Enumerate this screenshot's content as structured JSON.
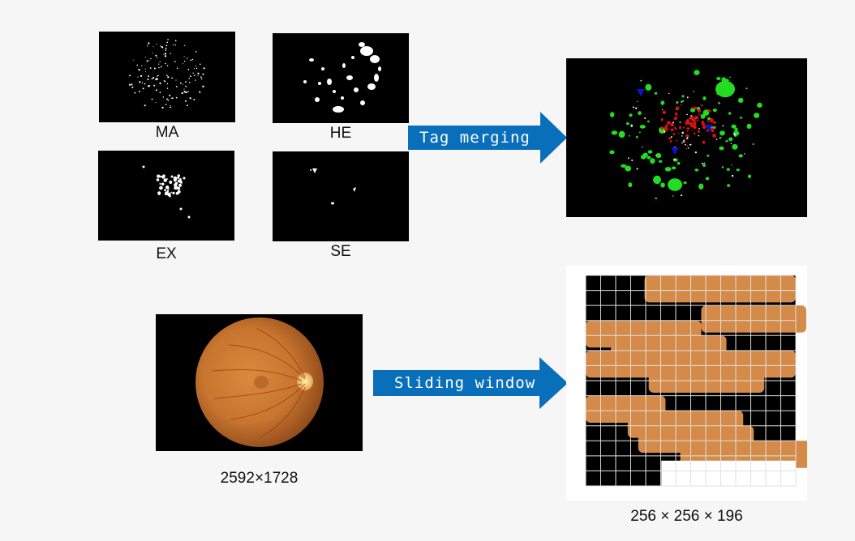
{
  "lesion_masks": [
    {
      "id": "ma",
      "label": "MA"
    },
    {
      "id": "he",
      "label": "HE"
    },
    {
      "id": "ex",
      "label": "EX"
    },
    {
      "id": "se",
      "label": "SE"
    }
  ],
  "tag_merging": {
    "label": "Tag merging",
    "color": "#0a6fba",
    "legend_colors": {
      "MA": "#ffffff",
      "HE": "#22dd22",
      "EX": "#dd1111",
      "SE": "#1111cc"
    }
  },
  "fundus": {
    "size_label": "2592×1728"
  },
  "sliding_window": {
    "label": "Sliding window",
    "patch_label": "256 × 256 × 196",
    "grid_cols": 14,
    "grid_rows": 14
  }
}
